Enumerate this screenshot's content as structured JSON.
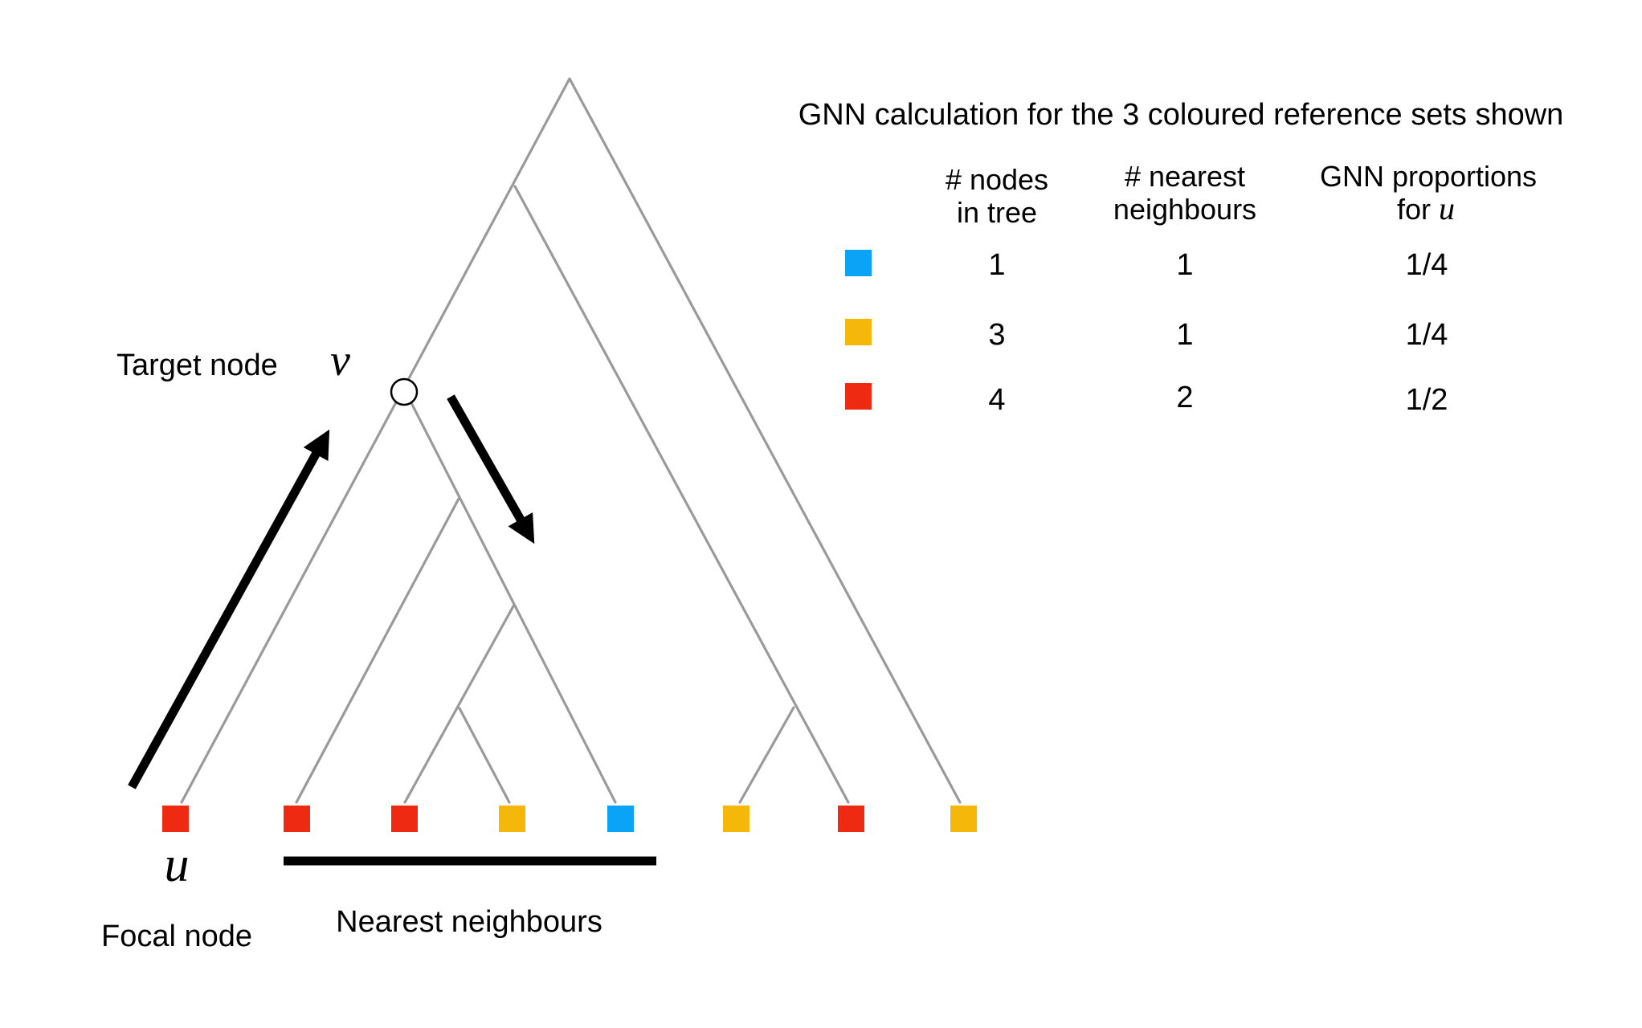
{
  "colors": {
    "blue": "#0aa3f5",
    "yellow": "#f6b70b",
    "red": "#ee2a12",
    "branch": "#9a9a9a",
    "arrow": "#000000"
  },
  "labels": {
    "target_node": "Target node",
    "target_symbol": "v",
    "focal_symbol": "u",
    "focal_node": "Focal node",
    "nearest_neighbours": "Nearest neighbours"
  },
  "leaves": [
    {
      "color": "red",
      "role": "focal"
    },
    {
      "color": "red"
    },
    {
      "color": "red"
    },
    {
      "color": "yellow"
    },
    {
      "color": "blue"
    },
    {
      "color": "yellow"
    },
    {
      "color": "red"
    },
    {
      "color": "yellow"
    }
  ],
  "table": {
    "title": "GNN calculation for the 3 coloured reference sets shown",
    "headers": [
      {
        "line1": "# nodes",
        "line2": "in tree"
      },
      {
        "line1": "# nearest",
        "line2": "neighbours"
      },
      {
        "line1": "GNN proportions",
        "line2": "for",
        "symbol": "u"
      }
    ],
    "rows": [
      {
        "color": "blue",
        "nodes_in_tree": "1",
        "nearest_neighbours": "1",
        "gnn_proportion": "1/4"
      },
      {
        "color": "yellow",
        "nodes_in_tree": "3",
        "nearest_neighbours": "1",
        "gnn_proportion": "1/4"
      },
      {
        "color": "red",
        "nodes_in_tree": "4",
        "nearest_neighbours": "2",
        "gnn_proportion": "1/2"
      }
    ]
  }
}
